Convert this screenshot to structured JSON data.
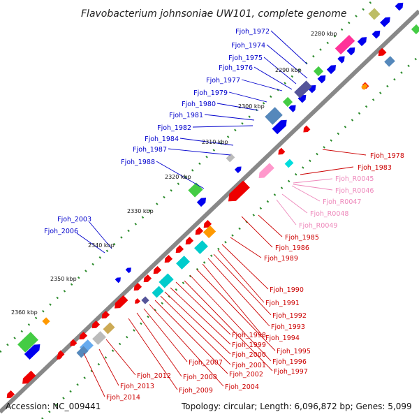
{
  "title": "Flavobacterium johnsoniae UW101, complete genome",
  "accession": "Accession: NC_009441",
  "topology": "Topology: circular; Length: 6,096,872 bp; Genes: 5,099",
  "ticks": [
    "2280 kbp",
    "2290 kbp",
    "2300 kbp",
    "2310 kbp",
    "2320 kbp",
    "2330 kbp",
    "2340 kbp",
    "2350 kbp",
    "2360 kbp"
  ],
  "colors": {
    "forward_label": "#0000cc",
    "reverse_label": "#cc0000",
    "rna_label": "#ee88bb",
    "forward_gene": "#0000ee",
    "reverse_gene": "#ee0000",
    "rna_gene": "#ff99cc",
    "backbone": "#888888",
    "gc_dots": "#2a8a2a"
  },
  "labels_forward": [
    "Fjoh_1972",
    "Fjoh_1974",
    "Fjoh_1975",
    "Fjoh_1976",
    "Fjoh_1977",
    "Fjoh_1979",
    "Fjoh_1980",
    "Fjoh_1981",
    "Fjoh_1982",
    "Fjoh_1984",
    "Fjoh_1987",
    "Fjoh_1988",
    "Fjoh_2003",
    "Fjoh_2006"
  ],
  "labels_reverse_right": [
    "Fjoh_1978",
    "Fjoh_1983"
  ],
  "labels_rna": [
    "Fjoh_R0045",
    "Fjoh_R0046",
    "Fjoh_R0047",
    "Fjoh_R0048",
    "Fjoh_R0049"
  ],
  "labels_reverse_mid": [
    "Fjoh_1985",
    "Fjoh_1986",
    "Fjoh_1989"
  ],
  "labels_reverse_lower": [
    "Fjoh_1990",
    "Fjoh_1991",
    "Fjoh_1992",
    "Fjoh_1993",
    "Fjoh_1994",
    "Fjoh_1995",
    "Fjoh_1996",
    "Fjoh_1997"
  ],
  "labels_reverse_cluster": [
    "Fjoh_1998",
    "Fjoh_1999",
    "Fjoh_2000",
    "Fjoh_2001",
    "Fjoh_2002",
    "Fjoh_2004"
  ],
  "labels_reverse_bottom": [
    "Fjoh_2007",
    "Fjoh_2008",
    "Fjoh_2009",
    "Fjoh_2012",
    "Fjoh_2013",
    "Fjoh_2014"
  ]
}
